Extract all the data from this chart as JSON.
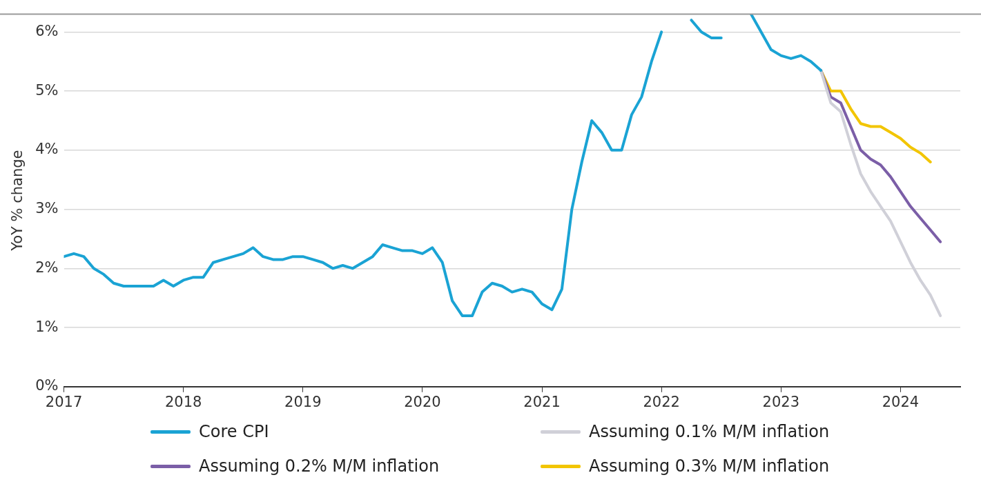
{
  "chart_data": {
    "type": "line",
    "ylabel": "YoY % change",
    "xlim": [
      "2017-01",
      "2024-07"
    ],
    "xticks": [
      "2017",
      "2018",
      "2019",
      "2020",
      "2021",
      "2022",
      "2023",
      "2024"
    ],
    "ylim": [
      0,
      6.3
    ],
    "yticks": [
      {
        "value": 0,
        "label": "0%"
      },
      {
        "value": 1,
        "label": "1%"
      },
      {
        "value": 2,
        "label": "2%"
      },
      {
        "value": 3,
        "label": "3%"
      },
      {
        "value": 4,
        "label": "4%"
      },
      {
        "value": 5,
        "label": "5%"
      },
      {
        "value": 6,
        "label": "6%"
      }
    ],
    "grid": "y",
    "legend": "bottom",
    "marker": "none",
    "line_style": "solid",
    "series": [
      {
        "name": "Core CPI",
        "color": "#1aa3d4",
        "x": [
          "2017-01",
          "2017-02",
          "2017-03",
          "2017-04",
          "2017-05",
          "2017-06",
          "2017-07",
          "2017-08",
          "2017-09",
          "2017-10",
          "2017-11",
          "2017-12",
          "2018-01",
          "2018-02",
          "2018-03",
          "2018-04",
          "2018-05",
          "2018-06",
          "2018-07",
          "2018-08",
          "2018-09",
          "2018-10",
          "2018-11",
          "2018-12",
          "2019-01",
          "2019-02",
          "2019-03",
          "2019-04",
          "2019-05",
          "2019-06",
          "2019-07",
          "2019-08",
          "2019-09",
          "2019-10",
          "2019-11",
          "2019-12",
          "2020-01",
          "2020-02",
          "2020-03",
          "2020-04",
          "2020-05",
          "2020-06",
          "2020-07",
          "2020-08",
          "2020-09",
          "2020-10",
          "2020-11",
          "2020-12",
          "2021-01",
          "2021-02",
          "2021-03",
          "2021-04",
          "2021-05",
          "2021-06",
          "2021-07",
          "2021-08",
          "2021-09",
          "2021-10",
          "2021-11",
          "2021-12",
          "2022-01",
          "2022-02",
          "2022-03",
          "2022-04",
          "2022-05",
          "2022-06",
          "2022-07",
          "2022-08",
          "2022-09",
          "2022-10",
          "2022-11",
          "2022-12",
          "2023-01",
          "2023-02",
          "2023-03",
          "2023-04",
          "2023-05"
        ],
        "values": [
          2.2,
          2.25,
          2.2,
          2.0,
          1.9,
          1.75,
          1.7,
          1.7,
          1.7,
          1.7,
          1.8,
          1.7,
          1.8,
          1.85,
          1.85,
          2.1,
          2.15,
          2.2,
          2.25,
          2.35,
          2.2,
          2.15,
          2.15,
          2.2,
          2.2,
          2.15,
          2.1,
          2.0,
          2.05,
          2.0,
          2.1,
          2.2,
          2.4,
          2.35,
          2.3,
          2.3,
          2.25,
          2.35,
          2.1,
          1.45,
          1.2,
          1.2,
          1.6,
          1.75,
          1.7,
          1.6,
          1.65,
          1.6,
          1.4,
          1.3,
          1.65,
          3.0,
          3.8,
          4.5,
          4.3,
          4.0,
          4.0,
          4.6,
          4.9,
          5.5,
          6.0,
          null,
          null,
          6.2,
          6.0,
          5.9,
          5.9,
          null,
          null,
          6.3,
          6.0,
          5.7,
          5.6,
          5.55,
          5.6,
          5.5,
          5.35
        ]
      },
      {
        "name": "Assuming 0.1% M/M inflation",
        "color": "#d0d0d8",
        "x": [
          "2023-05",
          "2023-06",
          "2023-07",
          "2023-08",
          "2023-09",
          "2023-10",
          "2023-11",
          "2023-12",
          "2024-01",
          "2024-02",
          "2024-03",
          "2024-04",
          "2024-05"
        ],
        "values": [
          5.35,
          4.8,
          4.65,
          4.1,
          3.6,
          3.3,
          3.05,
          2.8,
          2.45,
          2.1,
          1.8,
          1.55,
          1.2
        ]
      },
      {
        "name": "Assuming 0.2% M/M inflation",
        "color": "#7b5ea7",
        "x": [
          "2023-05",
          "2023-06",
          "2023-07",
          "2023-08",
          "2023-09",
          "2023-10",
          "2023-11",
          "2023-12",
          "2024-01",
          "2024-02",
          "2024-03",
          "2024-04",
          "2024-05"
        ],
        "values": [
          5.35,
          4.9,
          4.8,
          4.4,
          4.0,
          3.85,
          3.75,
          3.55,
          3.3,
          3.05,
          2.85,
          2.65,
          2.45
        ]
      },
      {
        "name": "Assuming 0.3% M/M inflation",
        "color": "#f2c500",
        "x": [
          "2023-05",
          "2023-06",
          "2023-07",
          "2023-08",
          "2023-09",
          "2023-10",
          "2023-11",
          "2023-12",
          "2024-01",
          "2024-02",
          "2024-03",
          "2024-04"
        ],
        "values": [
          5.35,
          5.0,
          5.0,
          4.7,
          4.45,
          4.4,
          4.4,
          4.3,
          4.2,
          4.05,
          3.95,
          3.8
        ]
      }
    ]
  }
}
